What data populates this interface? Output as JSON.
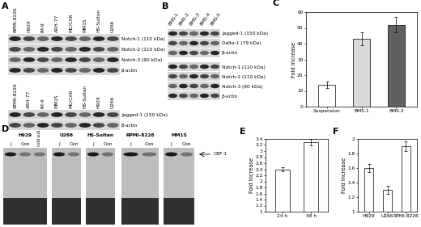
{
  "chart_data": [
    {
      "type": "bar",
      "title": "C",
      "y_label": "Fold Increase",
      "categories": [
        "Suspension",
        "BMS-1",
        "BMS-2"
      ],
      "values": [
        14,
        43,
        52
      ],
      "errors": [
        2,
        4,
        5
      ],
      "colors": [
        "#ffffff",
        "#d9d9d9",
        "#606060"
      ],
      "ylim": [
        0,
        60
      ],
      "yticks": [
        0,
        10,
        20,
        30,
        40,
        50,
        60
      ],
      "grid": false
    },
    {
      "type": "bar",
      "title": "E",
      "y_label": "Fold Increase",
      "categories": [
        "24 h",
        "48 h"
      ],
      "values": [
        2.4,
        3.3
      ],
      "errors": [
        0.07,
        0.1
      ],
      "colors": [
        "#ffffff",
        "#ffffff"
      ],
      "ylim": [
        1,
        3.4
      ],
      "yticks": [
        1,
        1.2,
        1.4,
        1.6,
        1.8,
        2,
        2.2,
        2.4,
        2.6,
        2.8,
        3,
        3.2,
        3.4
      ],
      "grid": false
    },
    {
      "type": "bar",
      "title": "F",
      "y_label": "Fold Increase",
      "categories": [
        "H929",
        "U266",
        "RPMI-8226"
      ],
      "values": [
        1.6,
        1.3,
        1.9
      ],
      "errors": [
        0.06,
        0.06,
        0.07
      ],
      "colors": [
        "#ffffff",
        "#ffffff",
        "#ffffff"
      ],
      "ylim": [
        1,
        2
      ],
      "yticks": [
        1,
        1.2,
        1.4,
        1.6,
        1.8,
        2
      ],
      "grid": false
    }
  ],
  "blots": {
    "A": {
      "sections": [
        {
          "lanes": [
            "RPMI-8226",
            "H929",
            "IM-9",
            "ARH-77",
            "MC/CAR",
            "MM1S",
            "HS-Sultan",
            "U266"
          ],
          "bands": [
            "Notch-1 (110 kDa)",
            "Notch-2 (110 kDa)",
            "Notch-3 (90 kDa)",
            "β-actin"
          ]
        },
        {
          "lanes": [
            "RPMI-8226",
            "ARH-77",
            "IM-9",
            "MM1S",
            "MC/CAR",
            "HS-Sultan",
            "H929",
            "U266"
          ],
          "bands": [
            "Jagged-1 (150 kDa)",
            "β-actin"
          ]
        }
      ]
    },
    "B": {
      "lanes": [
        "BMS-1",
        "BMS-2",
        "BMS-3",
        "BMS-4",
        "BMS-5"
      ],
      "bands": [
        "Jagged-1 (150 kDa)",
        "Delta-1 (79 kDa)",
        "β-actin",
        "Notch-1 (110 kDa)",
        "Notch-2 (110 kDa)",
        "Notch-3 (90 kDa)",
        "β-actin"
      ]
    },
    "D": {
      "arrow_label": "CBF-1",
      "groups": [
        {
          "name": "H929",
          "lanes": [
            "J",
            "Con",
            "cold sub."
          ]
        },
        {
          "name": "U266",
          "lanes": [
            "J",
            "Con"
          ]
        },
        {
          "name": "HS-Sultan",
          "lanes": [
            "J",
            "Con"
          ]
        },
        {
          "name": "RPMI-8226",
          "lanes": [
            "J",
            "Con"
          ]
        },
        {
          "name": "MM1S",
          "lanes": [
            "J",
            "Con"
          ]
        }
      ]
    }
  }
}
